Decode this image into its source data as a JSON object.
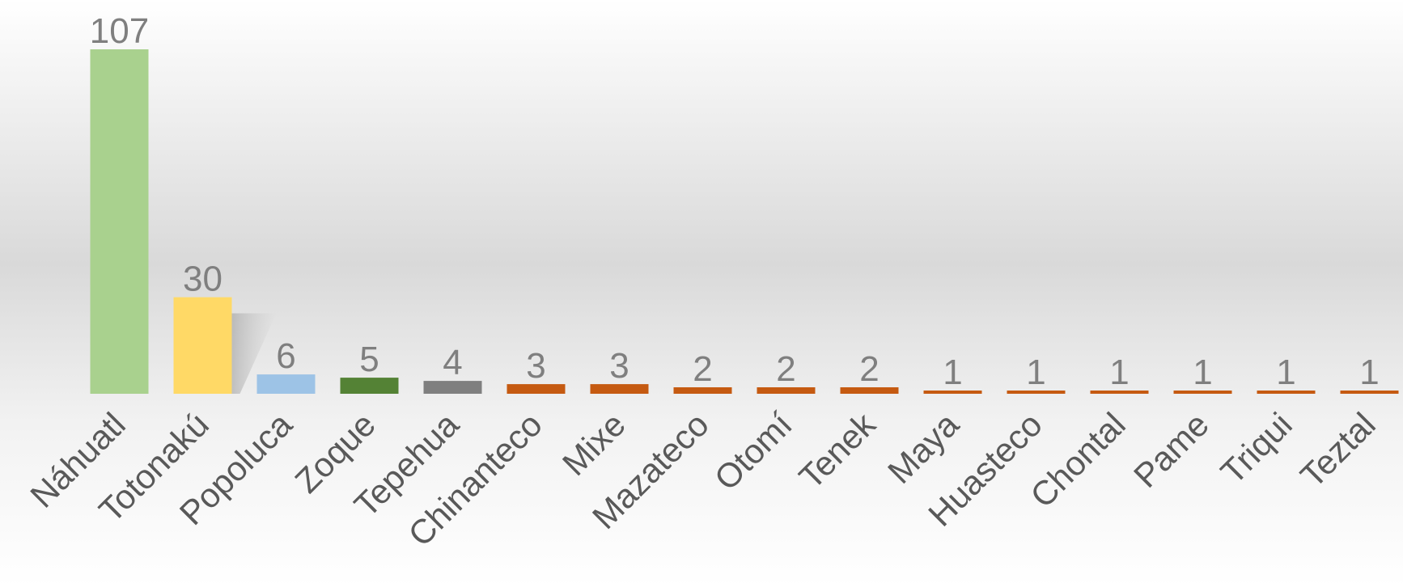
{
  "chart_data": {
    "type": "bar",
    "categories": [
      "Náhuatl",
      "Totonakú",
      "Popoluca",
      "Zoque",
      "Tepehua",
      "Chinanteco",
      "Mixe",
      "Mazateco",
      "Otomí",
      "Tenek",
      "Maya",
      "Huasteco",
      "Chontal",
      "Pame",
      "Triqui",
      "Teztal"
    ],
    "values": [
      107,
      30,
      6,
      5,
      4,
      3,
      3,
      2,
      2,
      2,
      1,
      1,
      1,
      1,
      1,
      1
    ],
    "bar_colors": [
      "#a9d18e",
      "#ffd966",
      "#9dc3e6",
      "#548235",
      "#7f7f7f",
      "#c55a11",
      "#c55a11",
      "#c55a11",
      "#c55a11",
      "#c55a11",
      "#c55a11",
      "#c55a11",
      "#c55a11",
      "#c55a11",
      "#c55a11",
      "#c55a11"
    ],
    "data_labels": [
      "107",
      "30",
      "6",
      "5",
      "4",
      "3",
      "3",
      "2",
      "2",
      "2",
      "1",
      "1",
      "1",
      "1",
      "1",
      "1"
    ],
    "ylim": [
      0,
      107
    ],
    "grid": false,
    "legend": "none",
    "background": "gradient gray"
  }
}
